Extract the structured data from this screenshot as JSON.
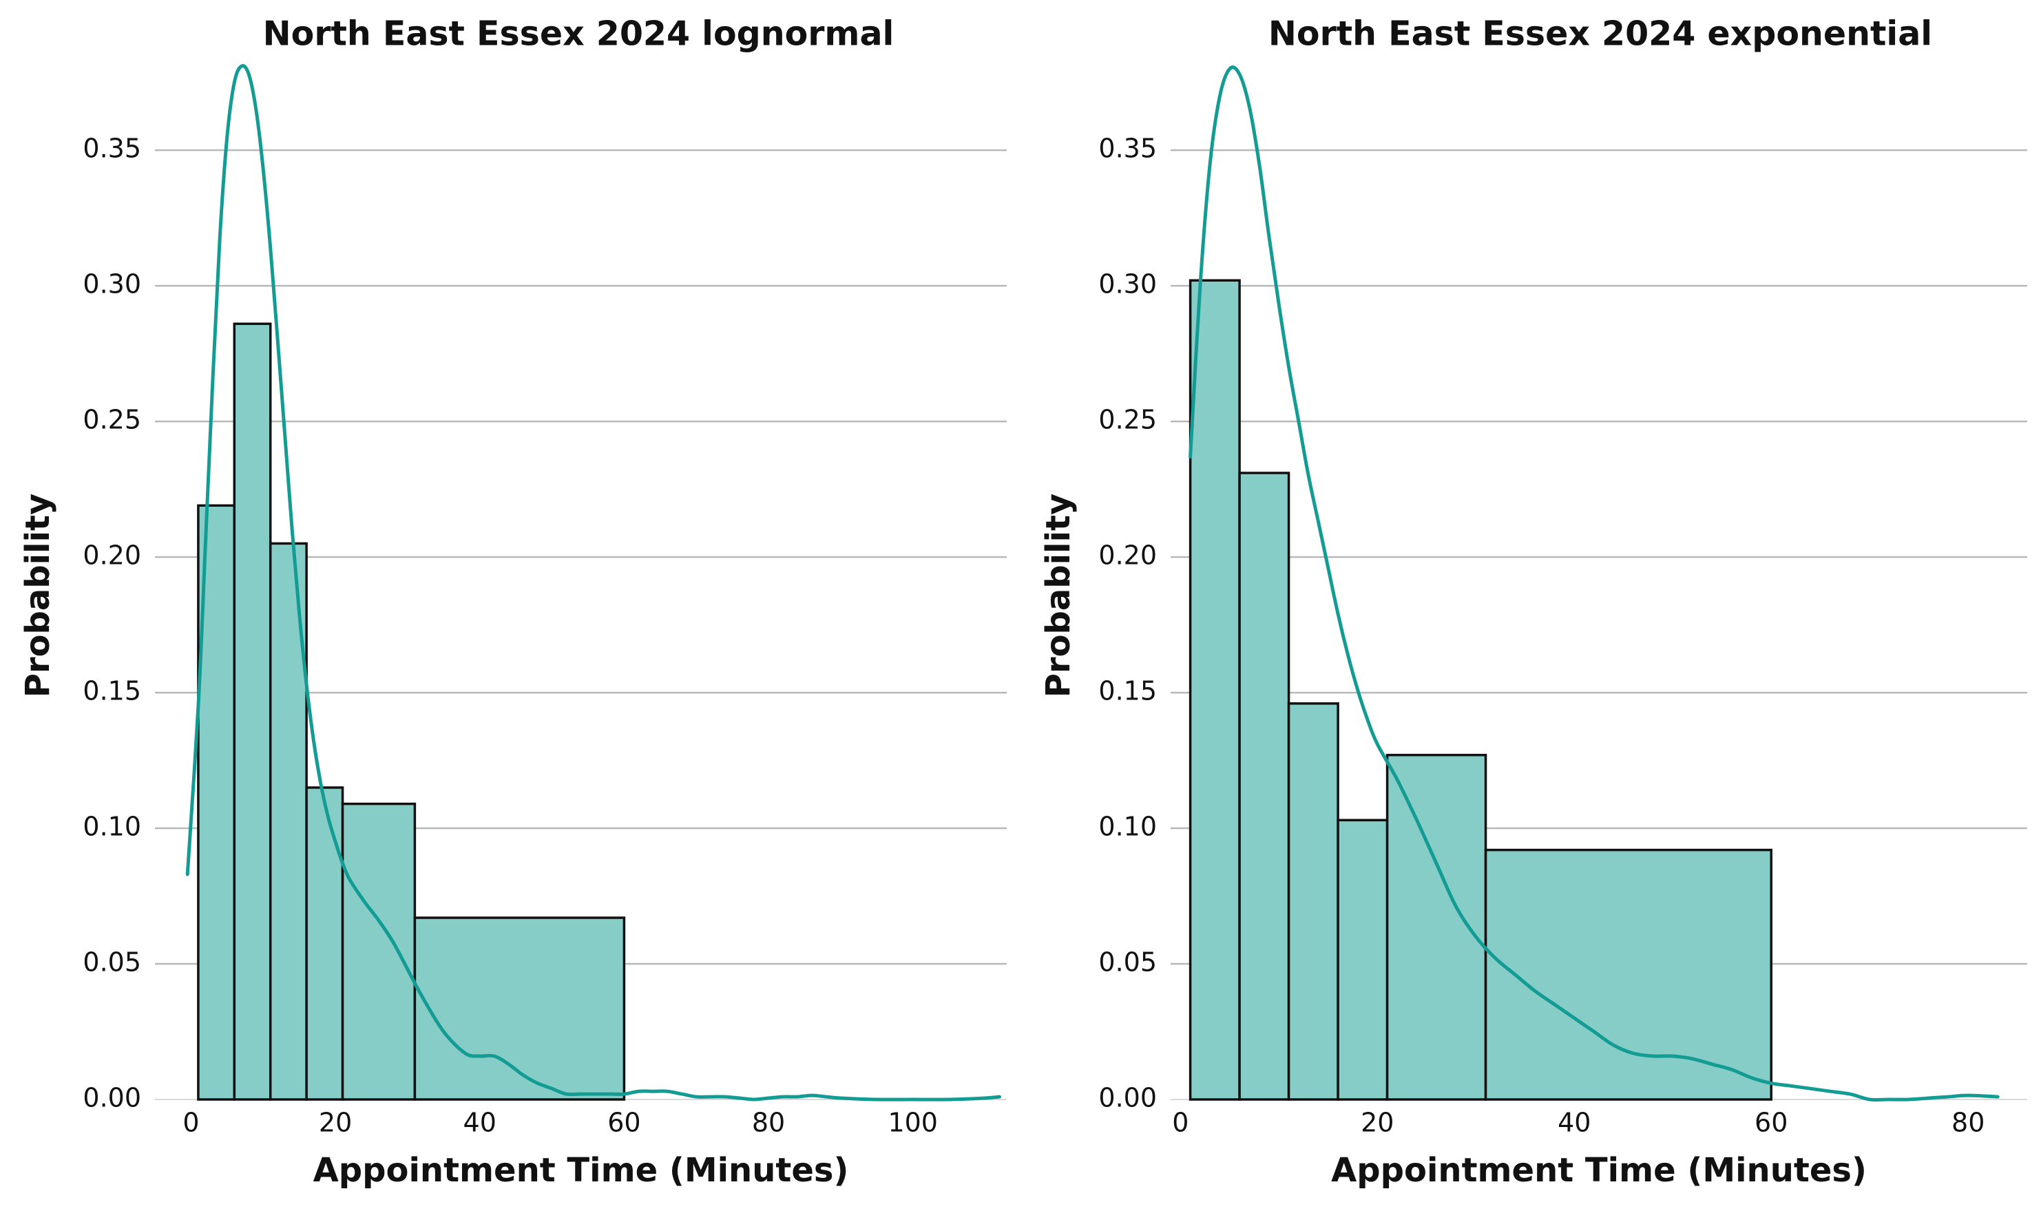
{
  "chart_data": [
    {
      "type": "bar",
      "title": "North East Essex 2024 lognormal",
      "xlabel": "Appointment Time (Minutes)",
      "ylabel": "Probability",
      "xlim": [
        -5,
        113
      ],
      "ylim": [
        0,
        0.38
      ],
      "xticks": [
        0,
        20,
        40,
        60,
        80,
        100
      ],
      "xtick_labels": [
        "0",
        "20",
        "40",
        "60",
        "80",
        "100"
      ],
      "yticks": [
        0,
        0.05,
        0.1,
        0.15,
        0.2,
        0.25,
        0.3,
        0.35
      ],
      "ytick_labels": [
        "0.00",
        "0.05",
        "0.10",
        "0.15",
        "0.20",
        "0.25",
        "0.30",
        "0.35"
      ],
      "grid": "horizontal",
      "bins": [
        {
          "start": 1,
          "end": 6,
          "value": 0.219
        },
        {
          "start": 6,
          "end": 11,
          "value": 0.286
        },
        {
          "start": 11,
          "end": 16,
          "value": 0.205
        },
        {
          "start": 16,
          "end": 21,
          "value": 0.115
        },
        {
          "start": 21,
          "end": 31,
          "value": 0.109
        },
        {
          "start": 31,
          "end": 60,
          "value": 0.067
        }
      ],
      "kde": {
        "x": [
          -0.5,
          1,
          2,
          3,
          4,
          5,
          6,
          7,
          8,
          9,
          10,
          11,
          12,
          13,
          14,
          15,
          16,
          17,
          18,
          19,
          20,
          21,
          22,
          24,
          26,
          28,
          30,
          32,
          35,
          38,
          40,
          42,
          44,
          46,
          48,
          50,
          52,
          54,
          56,
          58,
          60,
          62,
          64,
          66,
          68,
          70,
          72,
          74,
          76,
          78,
          80,
          82,
          84,
          86,
          88,
          90,
          95,
          100,
          105,
          110,
          112
        ],
        "y": [
          0.083,
          0.145,
          0.205,
          0.265,
          0.318,
          0.355,
          0.375,
          0.381,
          0.378,
          0.365,
          0.343,
          0.314,
          0.28,
          0.245,
          0.21,
          0.179,
          0.153,
          0.132,
          0.116,
          0.104,
          0.095,
          0.087,
          0.081,
          0.073,
          0.066,
          0.058,
          0.048,
          0.038,
          0.025,
          0.017,
          0.016,
          0.016,
          0.013,
          0.009,
          0.006,
          0.004,
          0.002,
          0.002,
          0.002,
          0.002,
          0.002,
          0.003,
          0.003,
          0.003,
          0.002,
          0.001,
          0.001,
          0.001,
          0.0005,
          0.0,
          0.0005,
          0.001,
          0.001,
          0.0015,
          0.001,
          0.0005,
          0.0,
          0.0,
          0.0,
          0.0005,
          0.001
        ]
      },
      "colors": {
        "bar_fill": "#86cdc8",
        "bar_edge": "#111111",
        "kde": "#139c93",
        "grid": "#b8b8b8"
      }
    },
    {
      "type": "bar",
      "title": "North East Essex 2024 exponential",
      "xlabel": "Appointment Time (Minutes)",
      "ylabel": "Probability",
      "xlim": [
        -1,
        86
      ],
      "ylim": [
        0,
        0.38
      ],
      "xticks": [
        0,
        20,
        40,
        60,
        80
      ],
      "xtick_labels": [
        "0",
        "20",
        "40",
        "60",
        "80"
      ],
      "yticks": [
        0,
        0.05,
        0.1,
        0.15,
        0.2,
        0.25,
        0.3,
        0.35
      ],
      "ytick_labels": [
        "0.00",
        "0.05",
        "0.10",
        "0.15",
        "0.20",
        "0.25",
        "0.30",
        "0.35"
      ],
      "grid": "horizontal",
      "bins": [
        {
          "start": 1,
          "end": 6,
          "value": 0.302
        },
        {
          "start": 6,
          "end": 11,
          "value": 0.231
        },
        {
          "start": 11,
          "end": 16,
          "value": 0.146
        },
        {
          "start": 16,
          "end": 21,
          "value": 0.103
        },
        {
          "start": 21,
          "end": 31,
          "value": 0.127
        },
        {
          "start": 31,
          "end": 60,
          "value": 0.092
        }
      ],
      "kde": {
        "x": [
          1,
          2,
          3,
          4,
          5,
          6,
          7,
          8,
          9,
          10,
          11,
          12,
          13,
          14,
          15,
          16,
          17,
          18,
          19,
          20,
          22,
          24,
          26,
          28,
          30,
          32,
          34,
          36,
          38,
          40,
          42,
          44,
          46,
          48,
          50,
          52,
          54,
          56,
          58,
          60,
          62,
          64,
          66,
          68,
          70,
          72,
          74,
          76,
          78,
          80,
          83
        ],
        "y": [
          0.237,
          0.3,
          0.345,
          0.37,
          0.38,
          0.378,
          0.366,
          0.345,
          0.318,
          0.293,
          0.27,
          0.25,
          0.23,
          0.213,
          0.196,
          0.179,
          0.164,
          0.151,
          0.14,
          0.131,
          0.118,
          0.103,
          0.087,
          0.071,
          0.06,
          0.052,
          0.046,
          0.04,
          0.035,
          0.03,
          0.025,
          0.02,
          0.017,
          0.016,
          0.016,
          0.015,
          0.013,
          0.011,
          0.008,
          0.006,
          0.005,
          0.004,
          0.003,
          0.002,
          0.0,
          0.0,
          0.0,
          0.0005,
          0.001,
          0.0015,
          0.001
        ]
      },
      "colors": {
        "bar_fill": "#86cdc8",
        "bar_edge": "#111111",
        "kde": "#139c93",
        "grid": "#b8b8b8"
      }
    }
  ]
}
